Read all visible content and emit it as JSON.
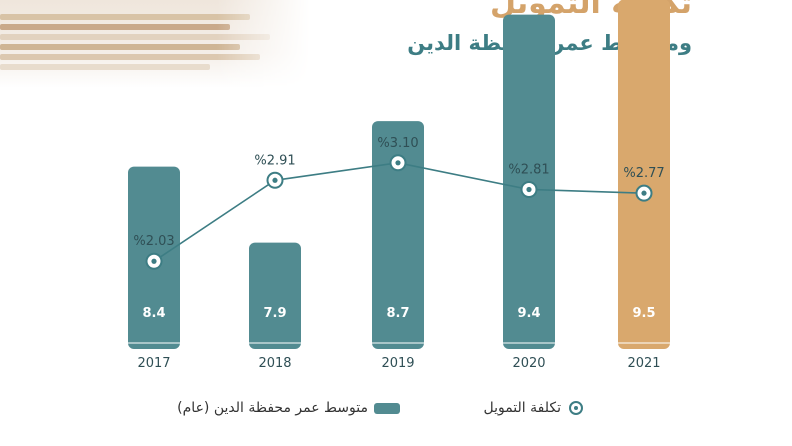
{
  "header": {
    "title": "تكلفة التمويل",
    "subtitle": "ومتوسط عمر محفظة الدين"
  },
  "legend": {
    "line_label": "تكلفة التمويل",
    "bar_label": "متوسط عمر محفظة الدين (عام)"
  },
  "colors": {
    "bar": "#528b91",
    "bar_highlight": "#d9a86d",
    "line": "#3d7d84",
    "title_gold": "#d4a36a",
    "title_teal": "#3d7d84"
  },
  "chart_data": {
    "type": "bar",
    "categories": [
      "2017",
      "2018",
      "2019",
      "2020",
      "2021"
    ],
    "series": [
      {
        "name": "متوسط عمر محفظة الدين (عام)",
        "type": "bar",
        "values": [
          8.4,
          7.9,
          8.7,
          9.4,
          9.5
        ],
        "labels": [
          "8.4",
          "7.9",
          "8.7",
          "9.4",
          "9.5"
        ],
        "highlight_category": "2021"
      },
      {
        "name": "تكلفة التمويل",
        "type": "line",
        "values": [
          2.03,
          2.91,
          3.1,
          2.81,
          2.77
        ],
        "labels": [
          "%2.03",
          "%2.91",
          "%3.10",
          "%2.81",
          "%2.77"
        ]
      }
    ],
    "grid": false,
    "legend_position": "bottom"
  }
}
